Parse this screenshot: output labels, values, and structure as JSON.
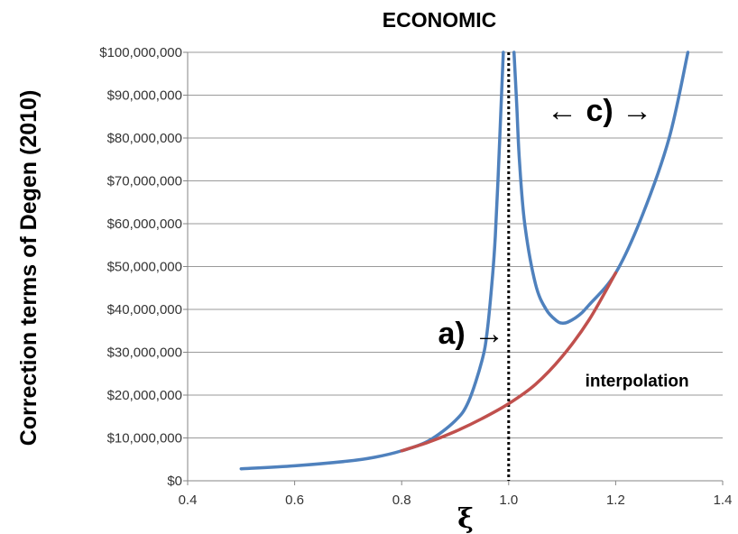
{
  "chart_data": {
    "type": "line",
    "title": "ECONOMIC",
    "ylabel": "Correction terms of Degen (2010)",
    "xlabel": "ξ",
    "xlim": [
      0.4,
      1.4
    ],
    "ylim": [
      0,
      100000000
    ],
    "x_ticks": [
      "0.4",
      "0.6",
      "0.8",
      "1.0",
      "1.2",
      "1.4"
    ],
    "y_ticks": [
      "$0",
      "$10,000,000",
      "$20,000,000",
      "$30,000,000",
      "$40,000,000",
      "$50,000,000",
      "$60,000,000",
      "$70,000,000",
      "$80,000,000",
      "$90,000,000",
      "$100,000,000"
    ],
    "grid": "horizontal",
    "colors": {
      "blue": "#4f81bd",
      "red": "#c0504d"
    },
    "series": [
      {
        "color": "#4f81bd",
        "segment": "left",
        "x": [
          0.5,
          0.6,
          0.7,
          0.75,
          0.8,
          0.85,
          0.9,
          0.925,
          0.95,
          0.96,
          0.97,
          0.975,
          0.98,
          0.985,
          0.99
        ],
        "y": [
          2800000,
          3500000,
          4600000,
          5500000,
          7000000,
          9300000,
          14000000,
          18500000,
          28000000,
          35000000,
          48000000,
          57000000,
          70000000,
          85000000,
          100000000
        ]
      },
      {
        "color": "#4f81bd",
        "segment": "right",
        "x": [
          1.01,
          1.015,
          1.02,
          1.03,
          1.05,
          1.07,
          1.09,
          1.1,
          1.11,
          1.13,
          1.15,
          1.2,
          1.25,
          1.3,
          1.335
        ],
        "y": [
          100000000,
          88000000,
          75000000,
          60000000,
          46000000,
          40000000,
          37300000,
          36800000,
          37000000,
          38500000,
          41000000,
          48500000,
          62000000,
          80000000,
          100000000
        ]
      },
      {
        "color": "#c0504d",
        "segment": "interpolation",
        "x": [
          0.8,
          0.85,
          0.9,
          0.95,
          1.0,
          1.05,
          1.1,
          1.15,
          1.2
        ],
        "y": [
          7000000,
          9000000,
          11500000,
          14500000,
          18000000,
          22500000,
          29000000,
          37500000,
          48500000
        ]
      }
    ],
    "vline": {
      "x": 1.0,
      "style": "dotted"
    },
    "annotations": [
      {
        "text": "a) →",
        "x": 0.93,
        "y": 32000000
      },
      {
        "text": "← c) →",
        "x": 1.17,
        "y": 84000000
      },
      {
        "text": "interpolation",
        "x": 1.24,
        "y": 22000000
      }
    ]
  }
}
